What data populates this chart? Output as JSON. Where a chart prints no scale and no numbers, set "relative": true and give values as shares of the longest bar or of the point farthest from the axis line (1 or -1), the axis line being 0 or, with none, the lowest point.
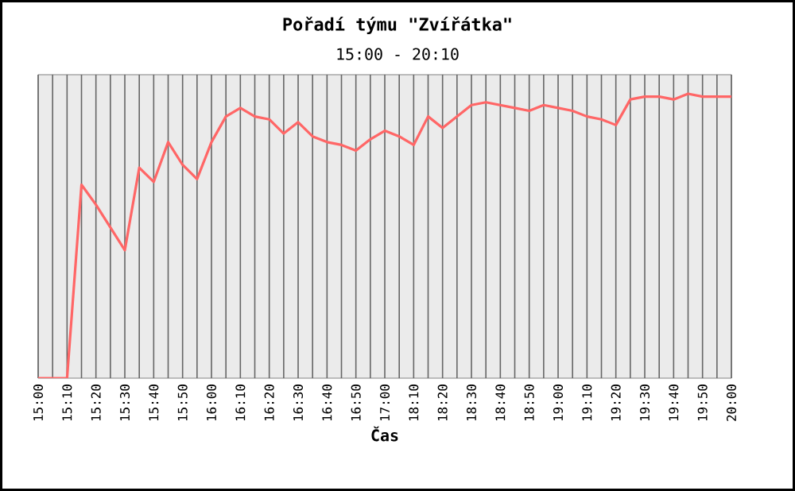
{
  "chart_data": {
    "type": "line",
    "title": "Pořadí týmu \"Zvířátka\"",
    "subtitle": "15:00 - 20:10",
    "xlabel": "Čas",
    "categories": [
      "15:00",
      null,
      "15:10",
      null,
      "15:20",
      null,
      "15:30",
      null,
      "15:40",
      null,
      "15:50",
      null,
      "16:00",
      null,
      "16:10",
      null,
      "16:20",
      null,
      "16:30",
      null,
      "16:40",
      null,
      "16:50",
      null,
      "17:00",
      null,
      "18:10",
      null,
      "18:20",
      null,
      "18:30",
      null,
      "18:40",
      null,
      "18:50",
      null,
      "19:00",
      null,
      "19:10",
      null,
      "19:20",
      null,
      "19:30",
      null,
      "19:40",
      null,
      "19:50",
      null,
      "20:00"
    ],
    "values": [
      0,
      0,
      0,
      0.68,
      0.61,
      0.53,
      0.45,
      0.74,
      0.69,
      0.83,
      0.75,
      0.7,
      0.83,
      0.92,
      0.95,
      0.92,
      0.91,
      0.86,
      0.9,
      0.85,
      0.83,
      0.82,
      0.8,
      0.84,
      0.87,
      0.85,
      0.82,
      0.92,
      0.88,
      0.92,
      0.96,
      0.97,
      0.96,
      0.95,
      0.94,
      0.96,
      0.95,
      0.94,
      0.92,
      0.91,
      0.89,
      0.98,
      0.99,
      0.99,
      0.98,
      1.0,
      0.99,
      0.99,
      0.99
    ],
    "color": "#ff6666",
    "relative": true,
    "grid": "x"
  }
}
